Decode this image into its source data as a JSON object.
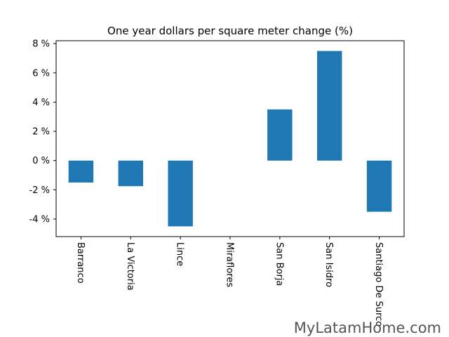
{
  "chart_data": {
    "type": "bar",
    "title": "One year dollars per square meter change (%)",
    "xlabel": "",
    "ylabel": "",
    "categories": [
      "Barranco",
      "La Victoria",
      "Lince",
      "Miraflores",
      "San Borja",
      "San Isidro",
      "Santiago De Surco"
    ],
    "values": [
      -1.5,
      -1.75,
      -4.5,
      0,
      3.5,
      7.5,
      -3.5
    ],
    "ylim": [
      -5.2,
      8.2
    ],
    "yticks": [
      -4,
      -2,
      0,
      2,
      4,
      6,
      8
    ],
    "ytick_labels": [
      "-4 %",
      "-2 %",
      "0 %",
      "2 %",
      "4 %",
      "6 %",
      "8 %"
    ],
    "bar_color": "#1f77b4",
    "grid": false,
    "legend": "none"
  },
  "watermark": "MyLatamHome.com"
}
